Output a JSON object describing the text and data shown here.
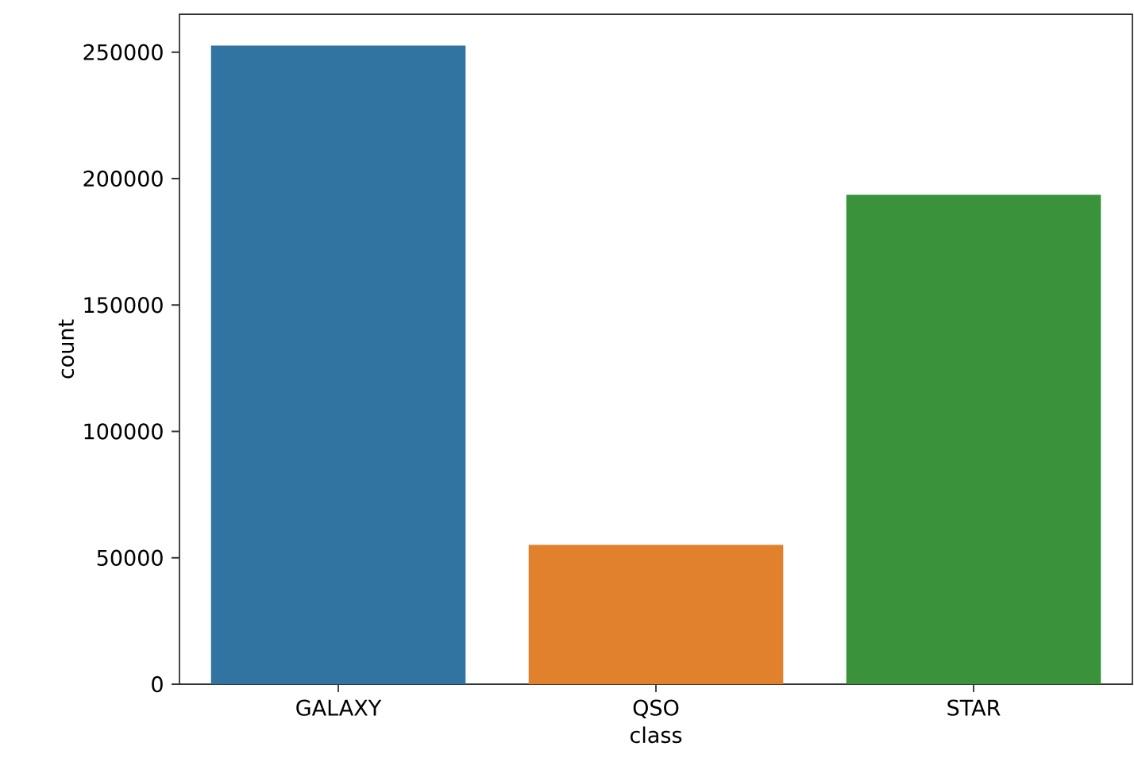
{
  "chart_data": {
    "type": "bar",
    "xlabel": "class",
    "ylabel": "count",
    "categories": [
      "GALAXY",
      "QSO",
      "STAR"
    ],
    "values": [
      252500,
      55000,
      193500
    ],
    "colors": [
      "#3274a1",
      "#e1812c",
      "#3a923a"
    ],
    "ylim": [
      0,
      265000
    ],
    "yticks": [
      0,
      50000,
      100000,
      150000,
      200000,
      250000
    ],
    "grid": false
  }
}
